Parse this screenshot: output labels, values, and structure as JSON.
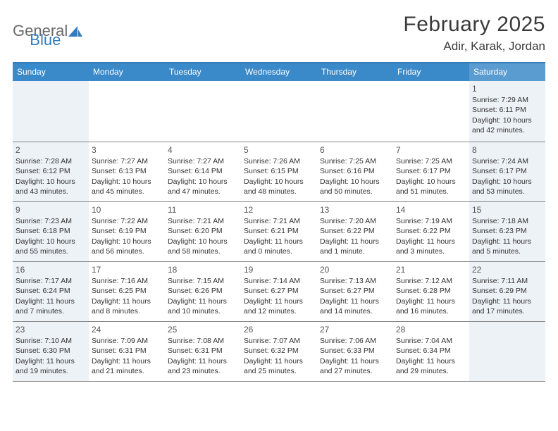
{
  "logo": {
    "text1": "General",
    "text2": "Blue"
  },
  "title": "February 2025",
  "location": "Adir, Karak, Jordan",
  "colors": {
    "header_bg": "#3a89c9",
    "header_sat_bg": "#5a9bd0",
    "weekend_cell_bg": "#edf2f7",
    "row_border": "#888888",
    "brand_blue": "#2f7dc0",
    "brand_gray": "#6a6a6a",
    "text": "#333333"
  },
  "layout": {
    "columns": 7,
    "rows": 5,
    "cell_font_size_pt": 8,
    "header_font_size_pt": 9
  },
  "weekdays": [
    "Sunday",
    "Monday",
    "Tuesday",
    "Wednesday",
    "Thursday",
    "Friday",
    "Saturday"
  ],
  "weeks": [
    [
      {
        "n": "",
        "sr": "",
        "ss": "",
        "dl": ""
      },
      {
        "n": "",
        "sr": "",
        "ss": "",
        "dl": ""
      },
      {
        "n": "",
        "sr": "",
        "ss": "",
        "dl": ""
      },
      {
        "n": "",
        "sr": "",
        "ss": "",
        "dl": ""
      },
      {
        "n": "",
        "sr": "",
        "ss": "",
        "dl": ""
      },
      {
        "n": "",
        "sr": "",
        "ss": "",
        "dl": ""
      },
      {
        "n": "1",
        "sr": "Sunrise: 7:29 AM",
        "ss": "Sunset: 6:11 PM",
        "dl": "Daylight: 10 hours and 42 minutes."
      }
    ],
    [
      {
        "n": "2",
        "sr": "Sunrise: 7:28 AM",
        "ss": "Sunset: 6:12 PM",
        "dl": "Daylight: 10 hours and 43 minutes."
      },
      {
        "n": "3",
        "sr": "Sunrise: 7:27 AM",
        "ss": "Sunset: 6:13 PM",
        "dl": "Daylight: 10 hours and 45 minutes."
      },
      {
        "n": "4",
        "sr": "Sunrise: 7:27 AM",
        "ss": "Sunset: 6:14 PM",
        "dl": "Daylight: 10 hours and 47 minutes."
      },
      {
        "n": "5",
        "sr": "Sunrise: 7:26 AM",
        "ss": "Sunset: 6:15 PM",
        "dl": "Daylight: 10 hours and 48 minutes."
      },
      {
        "n": "6",
        "sr": "Sunrise: 7:25 AM",
        "ss": "Sunset: 6:16 PM",
        "dl": "Daylight: 10 hours and 50 minutes."
      },
      {
        "n": "7",
        "sr": "Sunrise: 7:25 AM",
        "ss": "Sunset: 6:17 PM",
        "dl": "Daylight: 10 hours and 51 minutes."
      },
      {
        "n": "8",
        "sr": "Sunrise: 7:24 AM",
        "ss": "Sunset: 6:17 PM",
        "dl": "Daylight: 10 hours and 53 minutes."
      }
    ],
    [
      {
        "n": "9",
        "sr": "Sunrise: 7:23 AM",
        "ss": "Sunset: 6:18 PM",
        "dl": "Daylight: 10 hours and 55 minutes."
      },
      {
        "n": "10",
        "sr": "Sunrise: 7:22 AM",
        "ss": "Sunset: 6:19 PM",
        "dl": "Daylight: 10 hours and 56 minutes."
      },
      {
        "n": "11",
        "sr": "Sunrise: 7:21 AM",
        "ss": "Sunset: 6:20 PM",
        "dl": "Daylight: 10 hours and 58 minutes."
      },
      {
        "n": "12",
        "sr": "Sunrise: 7:21 AM",
        "ss": "Sunset: 6:21 PM",
        "dl": "Daylight: 11 hours and 0 minutes."
      },
      {
        "n": "13",
        "sr": "Sunrise: 7:20 AM",
        "ss": "Sunset: 6:22 PM",
        "dl": "Daylight: 11 hours and 1 minute."
      },
      {
        "n": "14",
        "sr": "Sunrise: 7:19 AM",
        "ss": "Sunset: 6:22 PM",
        "dl": "Daylight: 11 hours and 3 minutes."
      },
      {
        "n": "15",
        "sr": "Sunrise: 7:18 AM",
        "ss": "Sunset: 6:23 PM",
        "dl": "Daylight: 11 hours and 5 minutes."
      }
    ],
    [
      {
        "n": "16",
        "sr": "Sunrise: 7:17 AM",
        "ss": "Sunset: 6:24 PM",
        "dl": "Daylight: 11 hours and 7 minutes."
      },
      {
        "n": "17",
        "sr": "Sunrise: 7:16 AM",
        "ss": "Sunset: 6:25 PM",
        "dl": "Daylight: 11 hours and 8 minutes."
      },
      {
        "n": "18",
        "sr": "Sunrise: 7:15 AM",
        "ss": "Sunset: 6:26 PM",
        "dl": "Daylight: 11 hours and 10 minutes."
      },
      {
        "n": "19",
        "sr": "Sunrise: 7:14 AM",
        "ss": "Sunset: 6:27 PM",
        "dl": "Daylight: 11 hours and 12 minutes."
      },
      {
        "n": "20",
        "sr": "Sunrise: 7:13 AM",
        "ss": "Sunset: 6:27 PM",
        "dl": "Daylight: 11 hours and 14 minutes."
      },
      {
        "n": "21",
        "sr": "Sunrise: 7:12 AM",
        "ss": "Sunset: 6:28 PM",
        "dl": "Daylight: 11 hours and 16 minutes."
      },
      {
        "n": "22",
        "sr": "Sunrise: 7:11 AM",
        "ss": "Sunset: 6:29 PM",
        "dl": "Daylight: 11 hours and 17 minutes."
      }
    ],
    [
      {
        "n": "23",
        "sr": "Sunrise: 7:10 AM",
        "ss": "Sunset: 6:30 PM",
        "dl": "Daylight: 11 hours and 19 minutes."
      },
      {
        "n": "24",
        "sr": "Sunrise: 7:09 AM",
        "ss": "Sunset: 6:31 PM",
        "dl": "Daylight: 11 hours and 21 minutes."
      },
      {
        "n": "25",
        "sr": "Sunrise: 7:08 AM",
        "ss": "Sunset: 6:31 PM",
        "dl": "Daylight: 11 hours and 23 minutes."
      },
      {
        "n": "26",
        "sr": "Sunrise: 7:07 AM",
        "ss": "Sunset: 6:32 PM",
        "dl": "Daylight: 11 hours and 25 minutes."
      },
      {
        "n": "27",
        "sr": "Sunrise: 7:06 AM",
        "ss": "Sunset: 6:33 PM",
        "dl": "Daylight: 11 hours and 27 minutes."
      },
      {
        "n": "28",
        "sr": "Sunrise: 7:04 AM",
        "ss": "Sunset: 6:34 PM",
        "dl": "Daylight: 11 hours and 29 minutes."
      },
      {
        "n": "",
        "sr": "",
        "ss": "",
        "dl": ""
      }
    ]
  ]
}
